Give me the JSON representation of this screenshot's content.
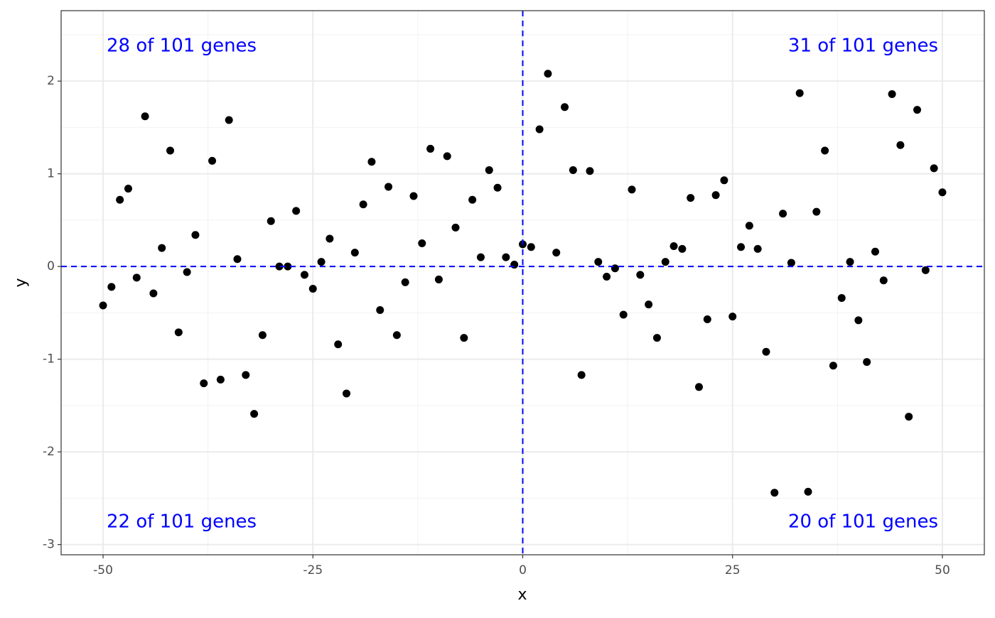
{
  "chart_data": {
    "type": "scatter",
    "x_label": "x",
    "y_label": "y",
    "x": [
      -50,
      -49,
      -48,
      -47,
      -46,
      -45,
      -44,
      -43,
      -42,
      -41,
      -40,
      -39,
      -38,
      -37,
      -36,
      -35,
      -34,
      -33,
      -32,
      -31,
      -30,
      -29,
      -28,
      -27,
      -26,
      -25,
      -24,
      -23,
      -22,
      -21,
      -20,
      -19,
      -18,
      -17,
      -16,
      -15,
      -14,
      -13,
      -12,
      -11,
      -10,
      -9,
      -8,
      -7,
      -6,
      -5,
      -4,
      -3,
      -2,
      -1,
      0,
      1,
      2,
      3,
      4,
      5,
      6,
      7,
      8,
      9,
      10,
      11,
      12,
      13,
      14,
      15,
      16,
      17,
      18,
      19,
      20,
      21,
      22,
      23,
      24,
      25,
      26,
      27,
      28,
      29,
      30,
      31,
      32,
      33,
      34,
      35,
      36,
      37,
      38,
      39,
      40,
      41,
      42,
      43,
      44,
      45,
      46,
      47,
      48,
      49,
      50
    ],
    "y": [
      -0.42,
      -0.22,
      0.72,
      0.84,
      -0.12,
      1.62,
      -0.29,
      0.2,
      1.25,
      -0.71,
      -0.06,
      0.34,
      -1.26,
      1.14,
      -1.22,
      1.58,
      0.08,
      -1.17,
      -1.59,
      -0.74,
      0.49,
      0,
      0,
      0.6,
      -0.09,
      -0.24,
      0.05,
      0.3,
      -0.84,
      -1.37,
      0.15,
      0.67,
      1.13,
      -0.47,
      0.86,
      -0.74,
      -0.17,
      0.76,
      0.25,
      1.27,
      -0.14,
      1.19,
      0.42,
      -0.77,
      0.72,
      0.1,
      1.04,
      0.85,
      0.1,
      0.02,
      0.24,
      0.21,
      1.48,
      2.08,
      0.15,
      1.72,
      1.04,
      -1.17,
      1.03,
      0.05,
      -0.11,
      -0.02,
      -0.52,
      0.83,
      -0.09,
      -0.41,
      -0.77,
      0.05,
      0.22,
      0.19,
      0.74,
      -1.3,
      -0.57,
      0.77,
      0.93,
      -0.54,
      0.21,
      0.44,
      0.19,
      -0.92,
      -2.44,
      0.57,
      0.04,
      1.87,
      -2.43,
      0.59,
      1.25,
      -1.07,
      -0.34,
      0.05,
      -0.58,
      -1.03,
      0.16,
      -0.15,
      1.86,
      1.31,
      -1.62,
      1.69,
      -0.04,
      1.06,
      0.8
    ],
    "color": "#000000",
    "xlim": [
      -55,
      55
    ],
    "ylim": [
      -3.11,
      2.76
    ],
    "xticks": [
      -50,
      -25,
      0,
      25,
      50
    ],
    "yticks": [
      -3,
      -2,
      -1,
      0,
      1,
      2
    ],
    "grid": true,
    "hline": 0,
    "vline": 0,
    "reference_color": "#0000ff",
    "annotations": [
      {
        "text": "28 of 101 genes",
        "position": "top-left"
      },
      {
        "text": "31 of 101 genes",
        "position": "top-right"
      },
      {
        "text": "22 of 101 genes",
        "position": "bottom-left"
      },
      {
        "text": "20 of 101 genes",
        "position": "bottom-right"
      }
    ]
  }
}
